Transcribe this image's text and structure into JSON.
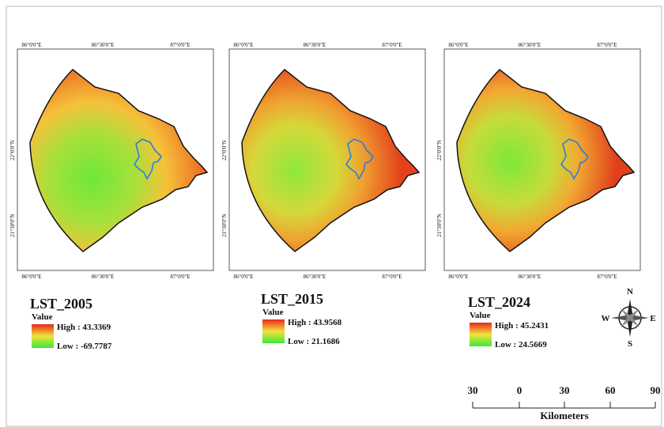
{
  "maps": [
    {
      "title": "LST_2005",
      "legend_title": "Value",
      "high": "High : 43.3369",
      "low": "Low : -69.7787",
      "x_labels": [
        "86°0'0\"E",
        "86°30'0\"E",
        "87°0'0\"E"
      ],
      "y_labels": [
        "22°0'0\"N",
        "21°30'0\"N"
      ]
    },
    {
      "title": "LST_2015",
      "legend_title": "Value",
      "high": "High : 43.9568",
      "low": "Low : 21.1686",
      "x_labels": [
        "86°0'0\"E",
        "86°30'0\"E",
        "87°0'0\"E"
      ],
      "y_labels": [
        "22°0'0\"N",
        "21°30'0\"N"
      ]
    },
    {
      "title": "LST_2024",
      "legend_title": "Value",
      "high": "High : 45.2431",
      "low": "Low : 24.5669",
      "x_labels": [
        "86°0'0\"E",
        "86°30'0\"E",
        "87°0'0\"E"
      ],
      "y_labels": [
        "22°0'0\"N",
        "21°30'0\"N"
      ]
    }
  ],
  "north_arrow": {
    "n": "N",
    "s": "S",
    "e": "E",
    "w": "W"
  },
  "scale_bar": {
    "ticks": [
      "30",
      "0",
      "30",
      "60",
      "90"
    ],
    "unit": "Kilometers"
  }
}
